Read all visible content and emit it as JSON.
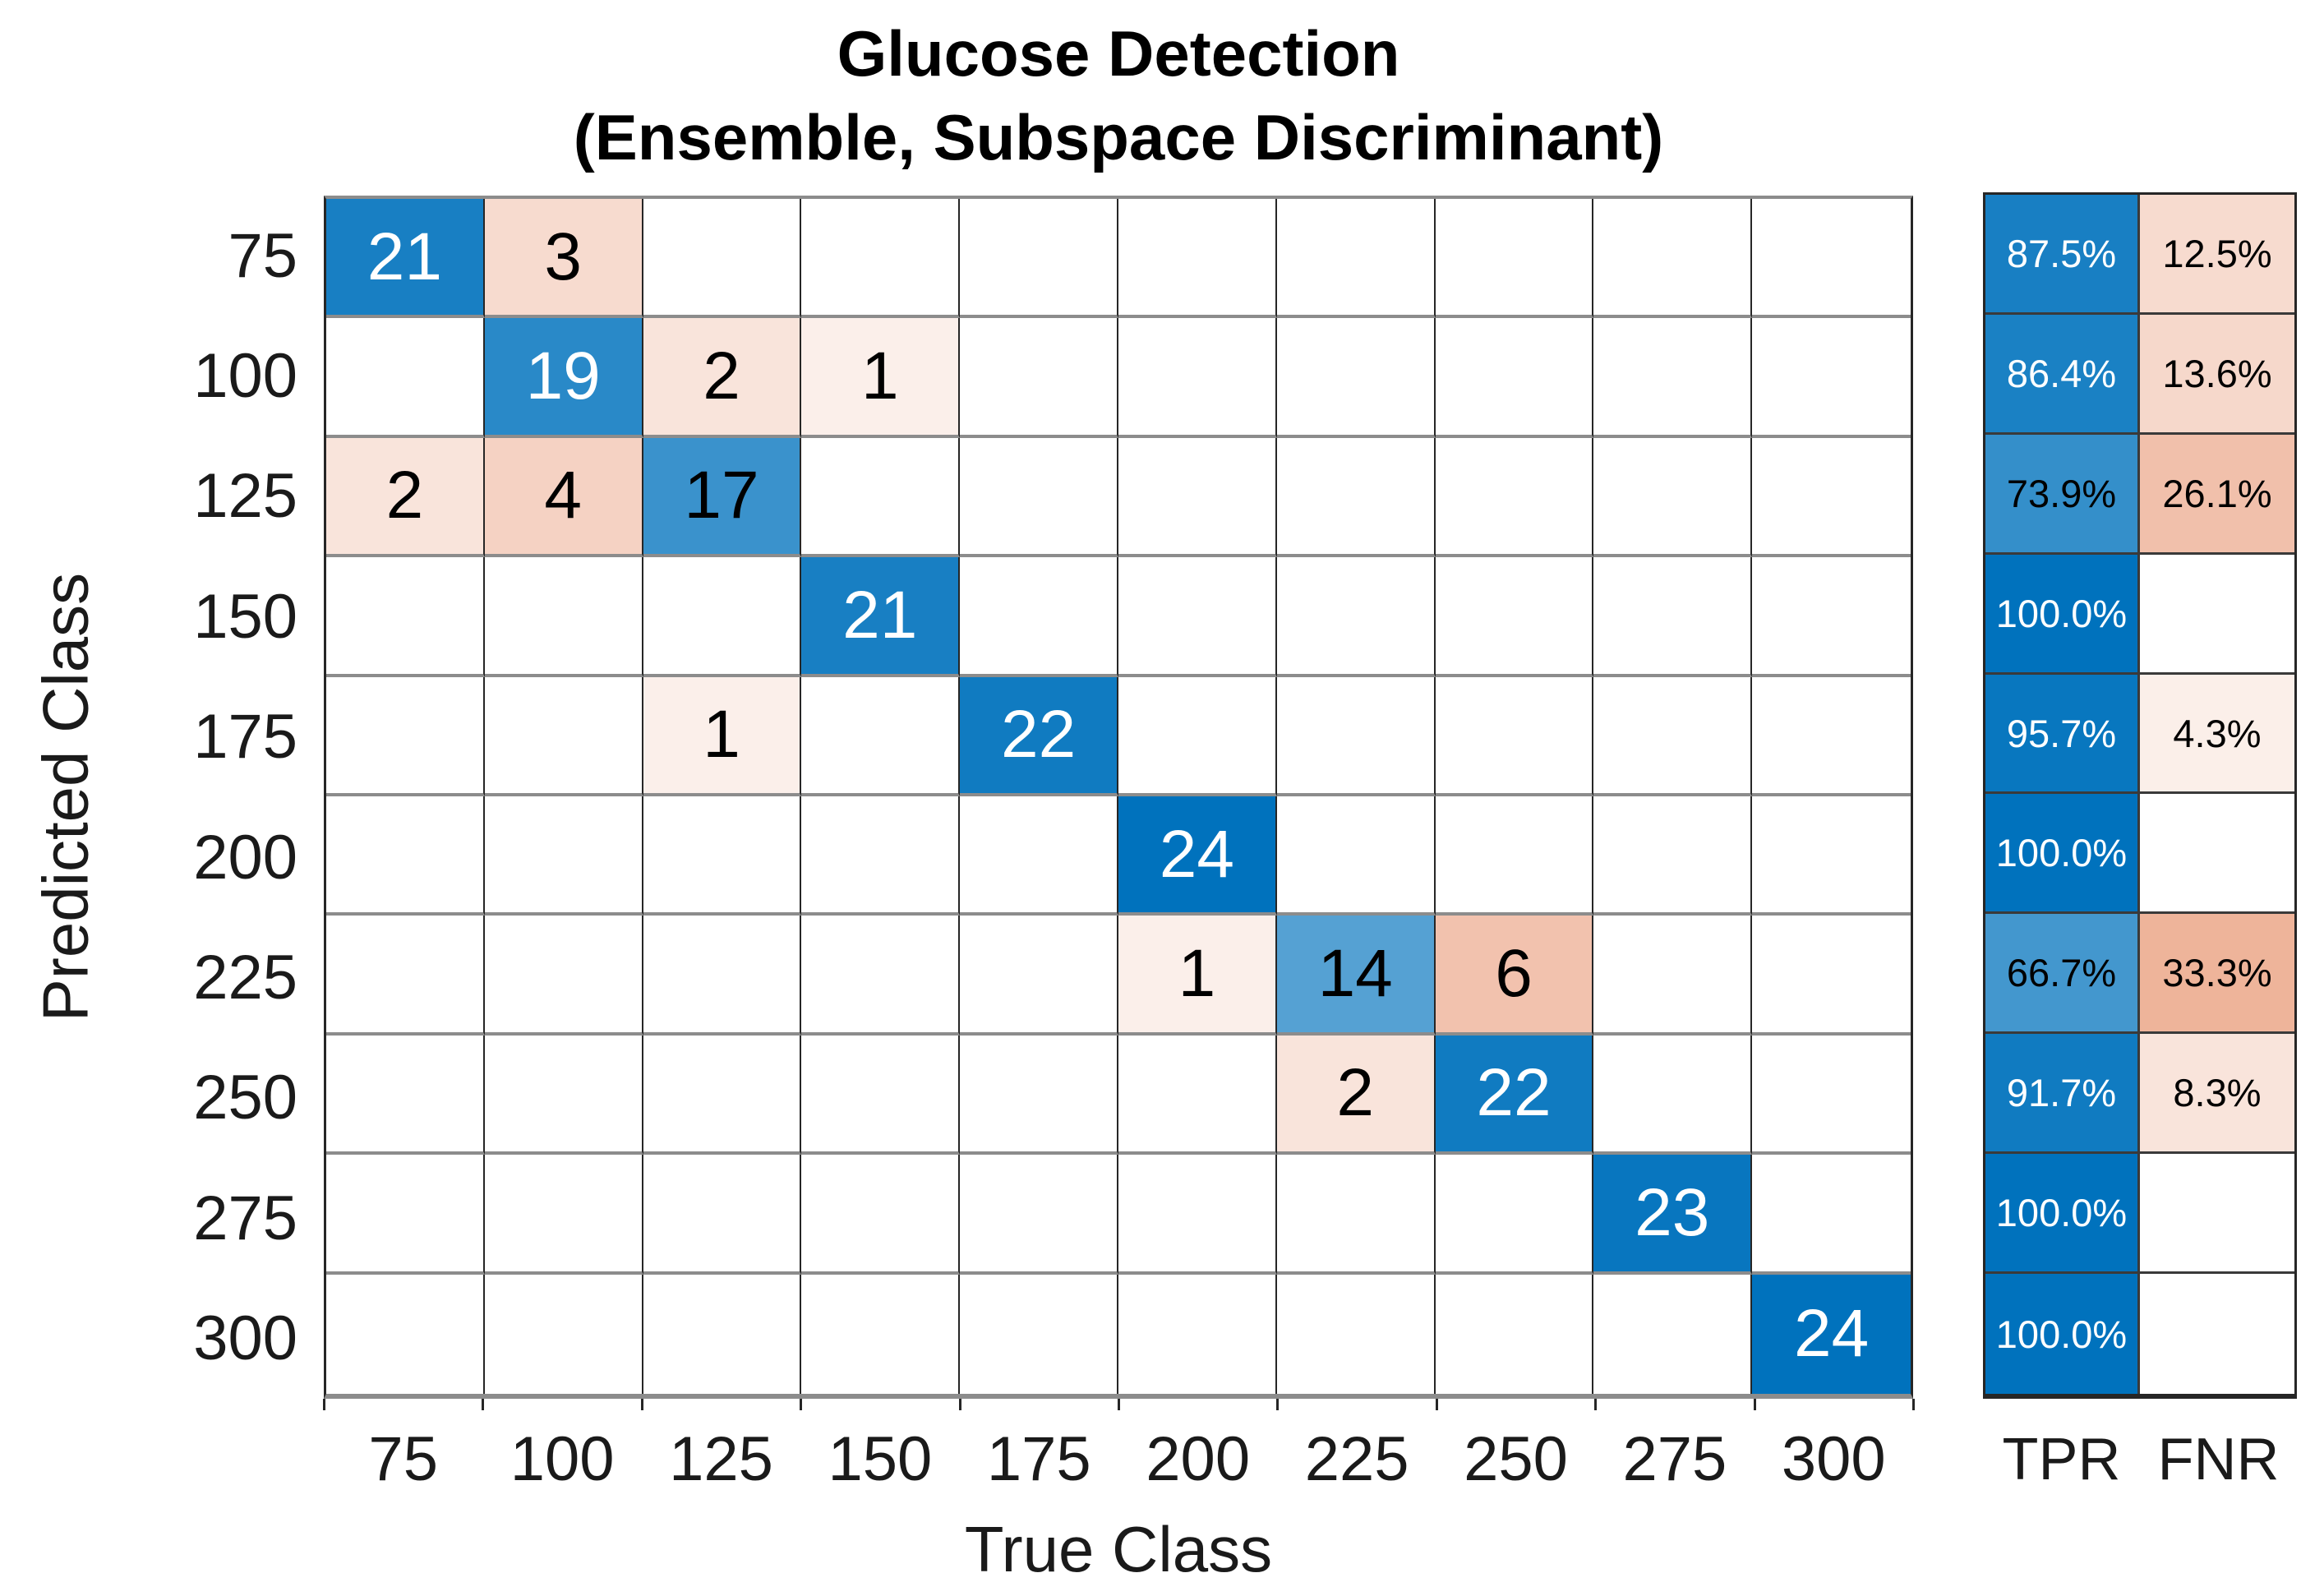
{
  "figure": {
    "title_line1": "Glucose Detection",
    "title_line2": "(Ensemble, Subspace Discriminant)",
    "x_axis_label": "True Class",
    "y_axis_label": "Predicted Class"
  },
  "chart_data": {
    "type": "heatmap",
    "subtype": "confusion-matrix",
    "title": "Glucose Detection (Ensemble, Subspace Discriminant)",
    "xlabel": "True Class",
    "ylabel": "Predicted Class",
    "classes": [
      "75",
      "100",
      "125",
      "150",
      "175",
      "200",
      "225",
      "250",
      "275",
      "300"
    ],
    "matrix_rows_are": "Predicted Class",
    "matrix_cols_are": "True Class",
    "matrix": [
      [
        21,
        3,
        null,
        null,
        null,
        null,
        null,
        null,
        null,
        null
      ],
      [
        null,
        19,
        2,
        1,
        null,
        null,
        null,
        null,
        null,
        null
      ],
      [
        2,
        4,
        17,
        null,
        null,
        null,
        null,
        null,
        null,
        null
      ],
      [
        null,
        null,
        null,
        21,
        null,
        null,
        null,
        null,
        null,
        null
      ],
      [
        null,
        null,
        1,
        null,
        22,
        null,
        null,
        null,
        null,
        null
      ],
      [
        null,
        null,
        null,
        null,
        null,
        24,
        null,
        null,
        null,
        null
      ],
      [
        null,
        null,
        null,
        null,
        null,
        1,
        14,
        6,
        null,
        null
      ],
      [
        null,
        null,
        null,
        null,
        null,
        null,
        2,
        22,
        null,
        null
      ],
      [
        null,
        null,
        null,
        null,
        null,
        null,
        null,
        null,
        23,
        null
      ],
      [
        null,
        null,
        null,
        null,
        null,
        null,
        null,
        null,
        null,
        24
      ]
    ],
    "row_summary": {
      "columns": [
        "TPR",
        "FNR"
      ],
      "tpr": [
        "87.5%",
        "86.4%",
        "73.9%",
        "100.0%",
        "95.7%",
        "100.0%",
        "66.7%",
        "91.7%",
        "100.0%",
        "100.0%"
      ],
      "fnr": [
        "12.5%",
        "13.6%",
        "26.1%",
        "",
        "4.3%",
        "",
        "33.3%",
        "8.3%",
        "",
        ""
      ]
    },
    "colors": {
      "diagonal_base": "#0072BD",
      "off_diagonal_base": "#D95319",
      "empty_cell": "#FFFFFF",
      "shade_exponent": 0.75,
      "white_text_threshold": 0.8,
      "grid_line_horizontal": "#8C8C8C",
      "grid_line_vertical": "#262626",
      "tick_label_color": "#1A1A1A"
    },
    "grid": true,
    "legend_position": "row-summary-right"
  }
}
